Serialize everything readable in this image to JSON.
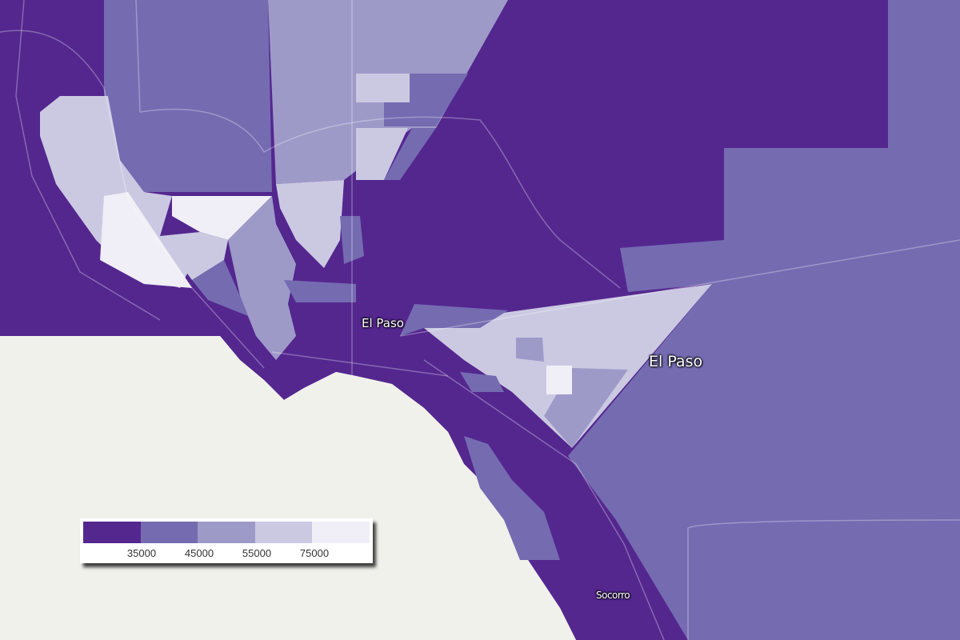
{
  "map": {
    "colors": {
      "class1": "#54278f",
      "class2": "#756bb1",
      "class3": "#9e9ac8",
      "class4": "#cbc9e2",
      "class5": "#f0eef6",
      "background": "#f1f1ec"
    },
    "labels": {
      "city_center": "El Paso",
      "county": "El Paso",
      "socorro": "Socorro"
    }
  },
  "legend": {
    "colors": [
      "#54278f",
      "#756bb1",
      "#9e9ac8",
      "#cbc9e2",
      "#f0eef6"
    ],
    "breaks": [
      "35000",
      "45000",
      "55000",
      "75000"
    ]
  }
}
